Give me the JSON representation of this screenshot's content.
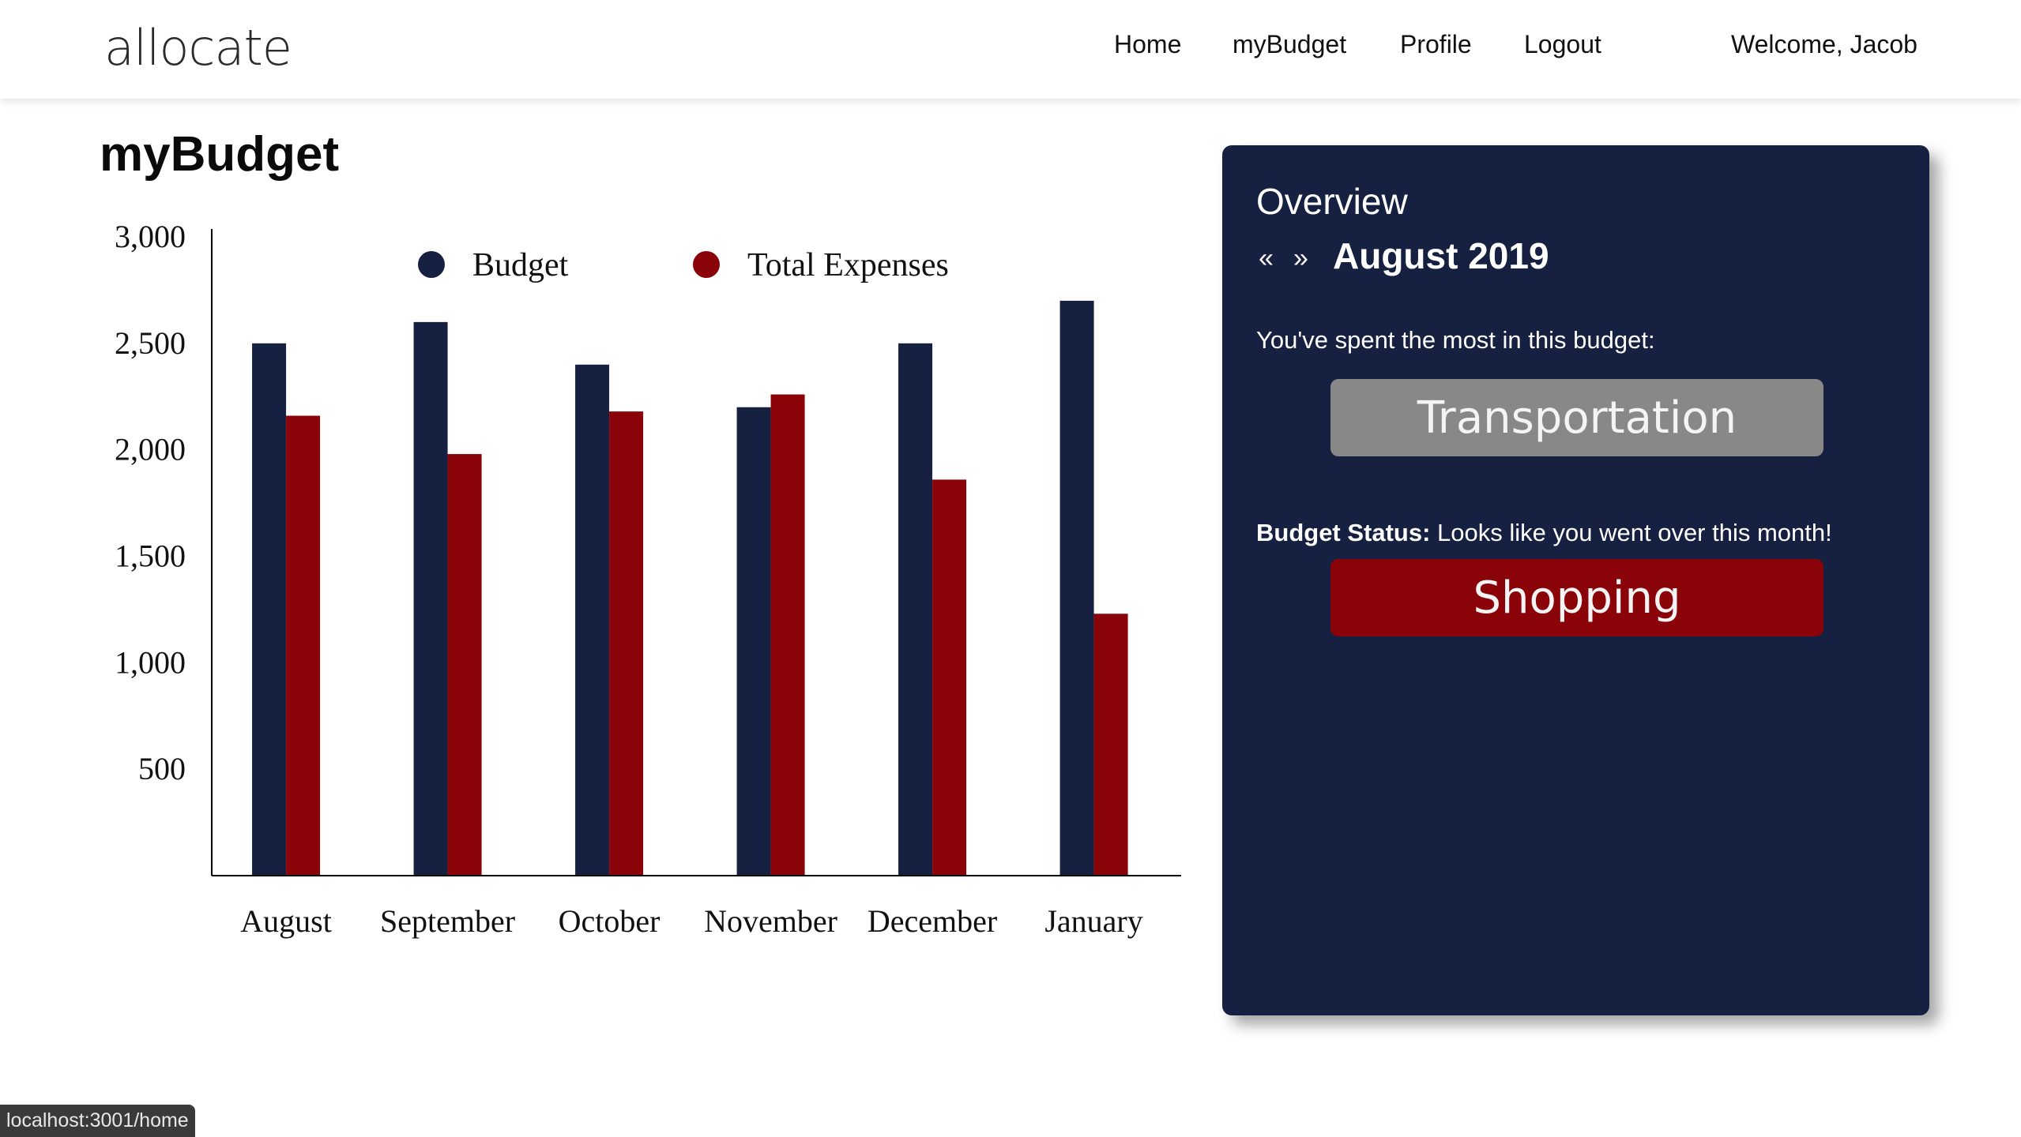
{
  "navbar": {
    "brand": "allocate",
    "links": [
      {
        "label": "Home"
      },
      {
        "label": "myBudget"
      },
      {
        "label": "Profile"
      },
      {
        "label": "Logout"
      }
    ],
    "welcome": "Welcome, Jacob"
  },
  "page": {
    "title": "myBudget"
  },
  "colors": {
    "budget": "#162040",
    "expenses": "#8a0309",
    "card_bg": "#162040",
    "top_chip": "#888888",
    "status_chip": "#8a0309"
  },
  "chart_data": {
    "type": "bar",
    "categories": [
      "August",
      "September",
      "October",
      "November",
      "December",
      "January"
    ],
    "series": [
      {
        "name": "Budget",
        "color": "#162040",
        "values": [
          2500,
          2600,
          2400,
          2200,
          2500,
          2700
        ]
      },
      {
        "name": "Total Expenses",
        "color": "#8a0309",
        "values": [
          2160,
          1980,
          2180,
          2260,
          1860,
          1230
        ]
      }
    ],
    "yticks": [
      "500",
      "1,000",
      "1,500",
      "2,000",
      "2,500",
      "3,000"
    ],
    "ytick_values": [
      500,
      1000,
      1500,
      2000,
      2500,
      3000
    ],
    "ylim": [
      0,
      3000
    ],
    "legend": "top",
    "grid": false,
    "title": "",
    "xlabel": "",
    "ylabel": ""
  },
  "overview": {
    "heading": "Overview",
    "prev_icon": "«",
    "next_icon": "»",
    "month": "August 2019",
    "spent_most_text": "You've spent the most in this budget:",
    "top_category": "Transportation",
    "status_label": "Budget Status:",
    "status_text": " Looks like you went over this month!",
    "status_category": "Shopping"
  },
  "statusbar": {
    "url": "localhost:3001/home"
  }
}
